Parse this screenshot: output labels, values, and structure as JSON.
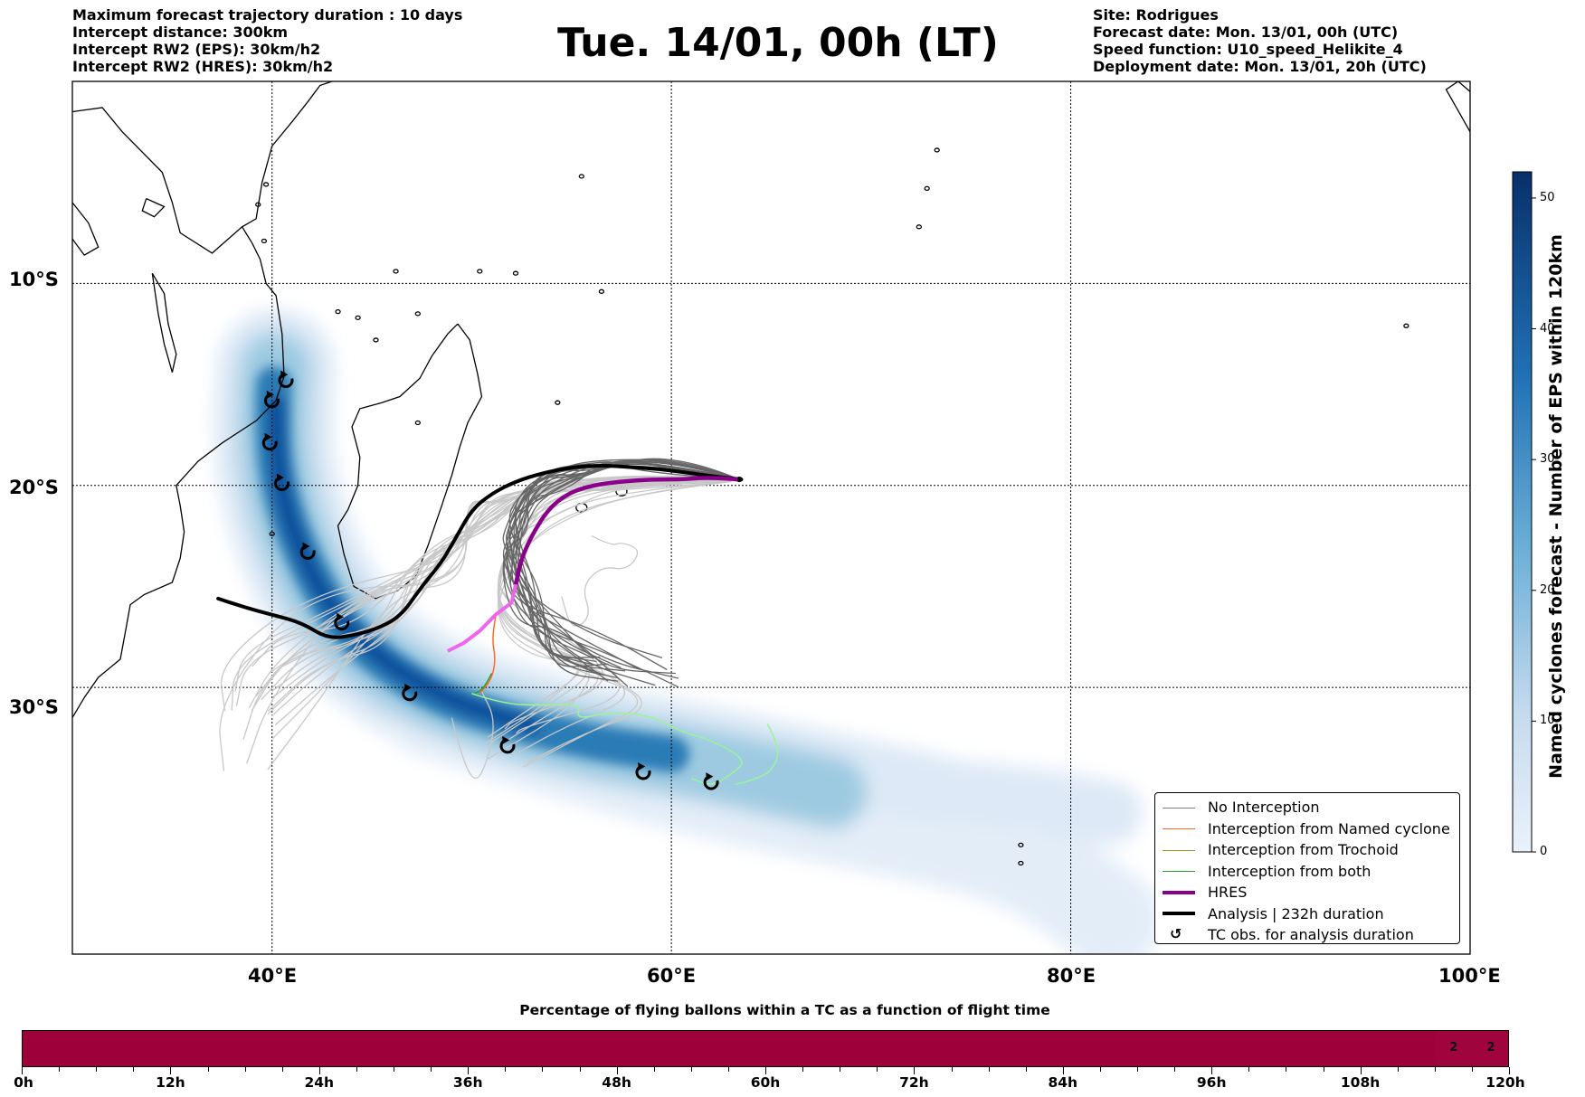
{
  "header": {
    "left_lines": [
      "Maximum forecast trajectory duration : 10 days",
      "Intercept distance: 300km",
      "Intercept RW2 (EPS):  30km/h2",
      "Intercept RW2 (HRES): 30km/h2"
    ],
    "title": "Tue. 14/01, 00h (LT)",
    "right_lines": [
      "Site: Rodrigues",
      "Forecast date: Mon. 13/01, 00h (UTC)",
      "Speed function: U10_speed_Helikite_4",
      "Deployment date: Mon. 13/01, 20h (UTC)"
    ]
  },
  "map": {
    "extent": {
      "lon": [
        30,
        100
      ],
      "lat": [
        -43.2,
        0
      ]
    },
    "lat_labels": [
      "10°S",
      "20°S",
      "30°S"
    ],
    "lon_labels": [
      "40°E",
      "60°E",
      "80°E",
      "100°E"
    ],
    "gridlines": true
  },
  "colorbar": {
    "label": "Named cyclones forecast - Number of EPS within 120km",
    "ticks": [
      "0",
      "10",
      "20",
      "30",
      "40",
      "50"
    ],
    "range": [
      0,
      52
    ],
    "color_low": "#eaf2fb",
    "color_high": "#08306b"
  },
  "legend": {
    "items": [
      {
        "label": "No Interception",
        "color": "#808080",
        "style": "line-thin"
      },
      {
        "label": "Interception from Named cyclone",
        "color": "#ff6a2a",
        "style": "line-thin"
      },
      {
        "label": "Interception from Trochoid",
        "color": "#9a9a2a",
        "style": "line-thin"
      },
      {
        "label": "Interception from both",
        "color": "#2ca02c",
        "style": "line-thin"
      },
      {
        "label": "HRES",
        "color": "#8b008b",
        "style": "line-thick"
      },
      {
        "label": "Analysis | 232h duration",
        "color": "#000000",
        "style": "line-thick"
      },
      {
        "label": "TC obs. for analysis duration",
        "color": "#000000",
        "style": "symbol",
        "symbol": "cyclone-symbol-icon"
      }
    ]
  },
  "tracks": {
    "analysis": [
      [
        37.3,
        -25.6
      ],
      [
        38.5,
        -26.0
      ],
      [
        40,
        -26.4
      ],
      [
        41.5,
        -26.8
      ],
      [
        42.8,
        -27.6
      ],
      [
        44.2,
        -27.4
      ],
      [
        45.5,
        -27.0
      ],
      [
        46.5,
        -26.4
      ],
      [
        47.5,
        -25.0
      ],
      [
        48.5,
        -23.8
      ],
      [
        49.2,
        -22.6
      ],
      [
        50.0,
        -21.2
      ],
      [
        51.0,
        -20.4
      ],
      [
        52.2,
        -19.8
      ],
      [
        53.5,
        -19.4
      ],
      [
        55,
        -19.1
      ],
      [
        56.5,
        -19.0
      ],
      [
        58,
        -19.1
      ],
      [
        59.5,
        -19.2
      ],
      [
        61,
        -19.4
      ],
      [
        62.5,
        -19.6
      ],
      [
        63.5,
        -19.7
      ]
    ],
    "hres": [
      [
        63.3,
        -19.7
      ],
      [
        62,
        -19.6
      ],
      [
        60.5,
        -19.7
      ],
      [
        59,
        -19.7
      ],
      [
        57.5,
        -19.8
      ],
      [
        56,
        -20.0
      ],
      [
        54.8,
        -20.4
      ],
      [
        53.8,
        -21.2
      ],
      [
        53.0,
        -22.5
      ],
      [
        52.5,
        -23.6
      ],
      [
        52.2,
        -24.9
      ],
      [
        52.0,
        -25.8
      ],
      [
        51.2,
        -26.4
      ],
      [
        50.4,
        -27.2
      ],
      [
        49.6,
        -27.8
      ],
      [
        48.8,
        -28.2
      ]
    ],
    "hres_split_index": 10,
    "tc_obs": [
      [
        40.7,
        -14.8
      ],
      [
        40.0,
        -15.8
      ],
      [
        39.9,
        -17.9
      ],
      [
        40.5,
        -19.9
      ],
      [
        41.8,
        -23.3
      ],
      [
        43.5,
        -26.8
      ],
      [
        46.9,
        -30.3
      ],
      [
        51.8,
        -32.9
      ],
      [
        58.6,
        -34.2
      ],
      [
        62.0,
        -34.7
      ]
    ]
  },
  "flight_bar": {
    "title": "Percentage of flying ballons within a TC as a function of flight time",
    "ticks": [
      "0h",
      "12h",
      "24h",
      "36h",
      "48h",
      "60h",
      "72h",
      "84h",
      "96h",
      "108h",
      "120h"
    ],
    "range_hours": [
      0,
      120
    ],
    "tail_values": [
      {
        "hour": 115.5,
        "label": "2"
      },
      {
        "hour": 118.5,
        "label": "2"
      }
    ],
    "color": "#9e003a"
  }
}
